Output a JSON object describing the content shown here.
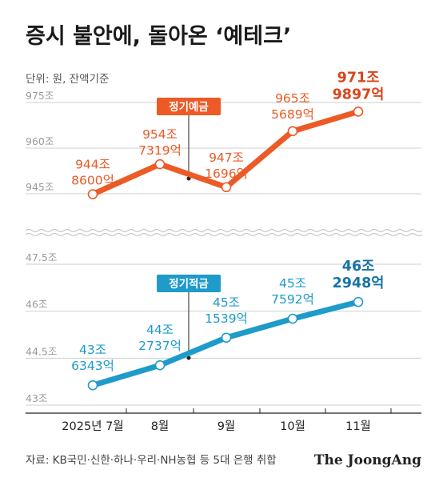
{
  "title": "증시 불안에, 돌아온 ‘예테크’",
  "unit_note": "단위: 원, 잔액기준",
  "source": "자료: KB국민·신한·하나·우리·NH농협 등 5대 은행 취합",
  "logo": "The JoongAng",
  "colors": {
    "deposit": "#ec5a26",
    "savings": "#1e9bc9",
    "hi_deposit": "#d8461a",
    "hi_savings": "#1773a6"
  },
  "chart_data": [
    {
      "type": "line",
      "series": [
        {
          "name": "정기예금",
          "values": [
            944.86,
            954.7319,
            947.1696,
            965.5689,
            971.9897
          ]
        }
      ],
      "categories": [
        "2025년 7월",
        "8월",
        "9월",
        "10월",
        "11월"
      ],
      "value_labels": [
        [
          "944조",
          "8600억"
        ],
        [
          "954조",
          "7319억"
        ],
        [
          "947조",
          "1696억"
        ],
        [
          "965조",
          "5689억"
        ],
        [
          "971조",
          "9897억"
        ]
      ],
      "yticks": [
        "975조",
        "960조",
        "945조"
      ],
      "ylim": [
        945,
        975
      ]
    },
    {
      "type": "line",
      "series": [
        {
          "name": "정기적금",
          "values": [
            43.6343,
            44.2737,
            45.1539,
            45.7592,
            46.2948
          ]
        }
      ],
      "categories": [
        "2025년 7월",
        "8월",
        "9월",
        "10월",
        "11월"
      ],
      "value_labels": [
        [
          "43조",
          "6343억"
        ],
        [
          "44조",
          "2737억"
        ],
        [
          "45조",
          "1539억"
        ],
        [
          "45조",
          "7592억"
        ],
        [
          "46조",
          "2948억"
        ]
      ],
      "yticks": [
        "47.5조",
        "46조",
        "44.5조",
        "43조"
      ],
      "ylim": [
        43,
        47.5
      ]
    }
  ]
}
